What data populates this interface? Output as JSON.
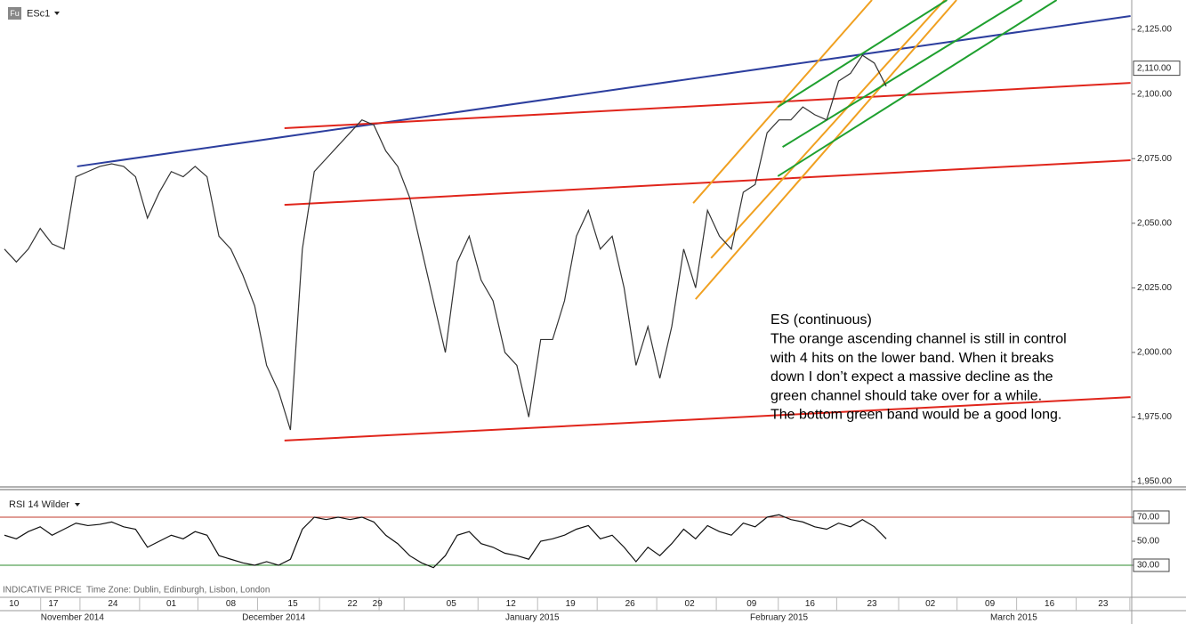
{
  "header": {
    "badge": "Fu",
    "symbol": "ESc1"
  },
  "footer": {
    "indicative": "INDICATIVE PRICE",
    "timezone": "Time Zone: Dublin, Edinburgh, Lisbon, London"
  },
  "chart_data": [
    {
      "type": "line",
      "xlim": [
        0,
        94.6
      ],
      "ylim": [
        1948.3,
        2136.4
      ],
      "yticks": [
        {
          "value": 1950,
          "label": "1,950.00"
        },
        {
          "value": 1975,
          "label": "1,975.00"
        },
        {
          "value": 2000,
          "label": "2,000.00"
        },
        {
          "value": 2025,
          "label": "2,025.00"
        },
        {
          "value": 2050,
          "label": "2,050.00"
        },
        {
          "value": 2075,
          "label": "2,075.00"
        },
        {
          "value": 2100,
          "label": "2,100.00"
        },
        {
          "value": 2125,
          "label": "2,125.00"
        }
      ],
      "x": [
        0,
        1,
        2,
        3,
        4,
        5,
        6,
        7,
        8,
        9,
        10,
        11,
        12,
        13,
        14,
        15,
        16,
        17,
        18,
        19,
        20,
        21,
        22,
        23,
        24,
        25,
        26,
        27,
        28,
        29,
        30,
        31,
        32,
        33,
        34,
        35,
        36,
        37,
        38,
        39,
        40,
        41,
        42,
        43,
        44,
        45,
        46,
        47,
        48,
        49,
        50,
        51,
        52,
        53,
        54,
        55,
        56,
        57,
        58,
        59,
        60,
        61,
        62,
        63,
        64,
        65,
        66,
        67,
        68,
        69,
        70,
        71,
        72,
        73,
        74
      ],
      "series": [
        {
          "color": "#333333",
          "values": [
            2040,
            2035,
            2040,
            2048,
            2042,
            2040,
            2068,
            2070,
            2072,
            2073,
            2072,
            2068,
            2052,
            2062,
            2070,
            2068,
            2072,
            2068,
            2045,
            2040,
            2030,
            2018,
            1995,
            1985,
            1970,
            2040,
            2070,
            2075,
            2080,
            2085,
            2090,
            2088,
            2078,
            2072,
            2060,
            2040,
            2020,
            2000,
            2035,
            2045,
            2028,
            2020,
            2000,
            1995,
            1975,
            2005,
            2005,
            2020,
            2045,
            2055,
            2040,
            2045,
            2025,
            1995,
            2010,
            1990,
            2010,
            2040,
            2025,
            2055,
            2045,
            2040,
            2062,
            2065,
            2085,
            2090,
            2090,
            2095,
            2092,
            2090,
            2105,
            2108,
            2115,
            2112,
            2103
          ]
        }
      ],
      "last_price": {
        "value": 2110,
        "label": "2,110.00"
      },
      "trendlines": [
        {
          "color": "#2c3e9e",
          "x": [
            6.1,
            94.5
          ],
          "y": [
            2072,
            2130.2
          ]
        },
        {
          "color": "#e0251b",
          "x": [
            23.5,
            94.5
          ],
          "y": [
            2086.8,
            2104.3
          ]
        },
        {
          "color": "#e0251b",
          "x": [
            23.5,
            94.5
          ],
          "y": [
            2057.1,
            2074.4
          ]
        },
        {
          "color": "#e0251b",
          "x": [
            23.5,
            94.5
          ],
          "y": [
            1965.9,
            1982.7
          ]
        },
        {
          "color": "#f0a020",
          "x": [
            57.8,
            72.8
          ],
          "y": [
            2057.8,
            2136.4
          ]
        },
        {
          "color": "#f0a020",
          "x": [
            59.3,
            78.9
          ],
          "y": [
            2036.5,
            2136.4
          ]
        },
        {
          "color": "#f0a020",
          "x": [
            58,
            79.9
          ],
          "y": [
            2020.6,
            2136.4
          ]
        },
        {
          "color": "#1fa02f",
          "x": [
            64.9,
            79.1
          ],
          "y": [
            2095,
            2136.4
          ]
        },
        {
          "color": "#1fa02f",
          "x": [
            65.3,
            85.4
          ],
          "y": [
            2079.5,
            2136.4
          ]
        },
        {
          "color": "#1fa02f",
          "x": [
            64.9,
            88.3
          ],
          "y": [
            2068.2,
            2136.4
          ]
        }
      ],
      "annotation": [
        "ES (continuous)",
        "The orange ascending channel is still in control",
        "with 4 hits on the lower band. When it breaks",
        "down I don’t expect a massive decline as the",
        "green channel should take over for a while.",
        "The bottom green band would be a good long."
      ]
    },
    {
      "type": "line",
      "title": "RSI 14 Wilder",
      "xlim": [
        0,
        94.6
      ],
      "ylim": [
        15.2,
        92.2
      ],
      "yticks": [
        {
          "value": 30,
          "label": "30.00"
        },
        {
          "value": 50,
          "label": "50.00"
        },
        {
          "value": 70,
          "label": "70.00"
        }
      ],
      "reference_lines": [
        {
          "value": 70,
          "color": "#c0392b"
        },
        {
          "value": 30,
          "color": "#2e8b2e"
        }
      ],
      "x": [
        0,
        1,
        2,
        3,
        4,
        5,
        6,
        7,
        8,
        9,
        10,
        11,
        12,
        13,
        14,
        15,
        16,
        17,
        18,
        19,
        20,
        21,
        22,
        23,
        24,
        25,
        26,
        27,
        28,
        29,
        30,
        31,
        32,
        33,
        34,
        35,
        36,
        37,
        38,
        39,
        40,
        41,
        42,
        43,
        44,
        45,
        46,
        47,
        48,
        49,
        50,
        51,
        52,
        53,
        54,
        55,
        56,
        57,
        58,
        59,
        60,
        61,
        62,
        63,
        64,
        65,
        66,
        67,
        68,
        69,
        70,
        71,
        72,
        73,
        74
      ],
      "series": [
        {
          "color": "#111111",
          "values": [
            55,
            52,
            58,
            62,
            55,
            60,
            65,
            63,
            64,
            66,
            62,
            60,
            45,
            50,
            55,
            52,
            58,
            55,
            38,
            35,
            32,
            30,
            33,
            30,
            35,
            60,
            70,
            68,
            70,
            68,
            70,
            66,
            55,
            48,
            38,
            32,
            28,
            38,
            55,
            58,
            48,
            45,
            40,
            38,
            35,
            50,
            52,
            55,
            60,
            63,
            52,
            55,
            45,
            33,
            45,
            38,
            48,
            60,
            52,
            63,
            58,
            55,
            65,
            62,
            70,
            72,
            68,
            66,
            62,
            60,
            65,
            62,
            68,
            62,
            52
          ]
        }
      ],
      "xticks": [
        {
          "value": 0.8,
          "label": "10"
        },
        {
          "value": 4.1,
          "label": "17"
        },
        {
          "value": 9.1,
          "label": "24"
        },
        {
          "value": 14,
          "label": "01"
        },
        {
          "value": 19,
          "label": "08"
        },
        {
          "value": 24.2,
          "label": "15"
        },
        {
          "value": 29.2,
          "label": "22"
        },
        {
          "value": 31.3,
          "label": "29"
        },
        {
          "value": 37.5,
          "label": "05"
        },
        {
          "value": 42.5,
          "label": "12"
        },
        {
          "value": 47.5,
          "label": "19"
        },
        {
          "value": 52.5,
          "label": "26"
        },
        {
          "value": 57.5,
          "label": "02"
        },
        {
          "value": 62.7,
          "label": "09"
        },
        {
          "value": 67.6,
          "label": "16"
        },
        {
          "value": 72.8,
          "label": "23"
        },
        {
          "value": 77.7,
          "label": "02"
        },
        {
          "value": 82.7,
          "label": "09"
        },
        {
          "value": 87.7,
          "label": "16"
        },
        {
          "value": 92.2,
          "label": "23"
        }
      ],
      "month_labels": [
        {
          "value": 5.7,
          "label": "November 2014"
        },
        {
          "value": 22.6,
          "label": "December 2014"
        },
        {
          "value": 44.3,
          "label": "January 2015"
        },
        {
          "value": 65,
          "label": "February 2015"
        },
        {
          "value": 84.7,
          "label": "March 2015"
        }
      ]
    }
  ]
}
